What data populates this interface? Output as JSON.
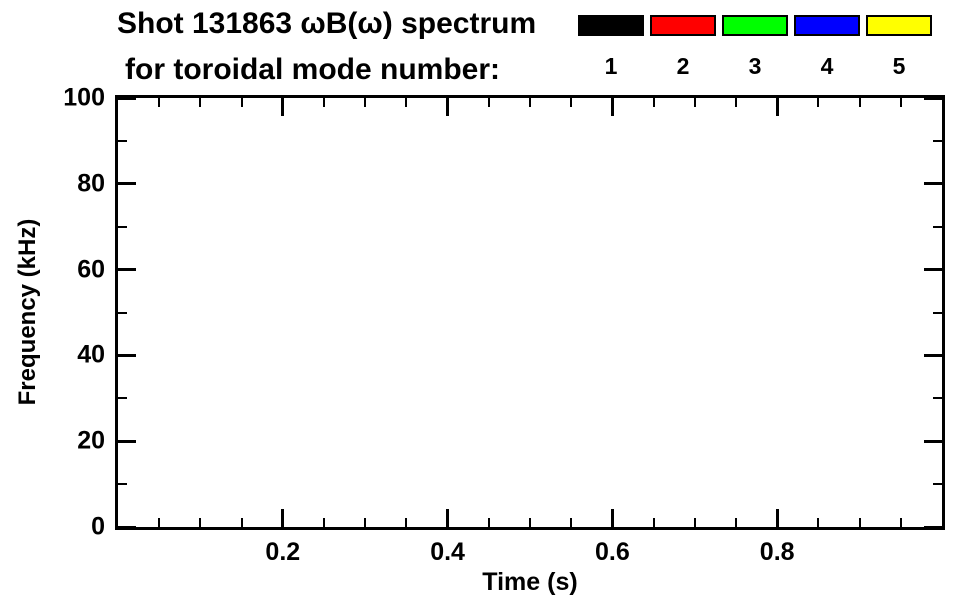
{
  "chart_data": {
    "type": "heatmap",
    "title": "Shot 131863 ωB(ω) spectrum",
    "subtitle": "for toroidal mode number:",
    "xlabel": "Time (s)",
    "ylabel": "Frequency (kHz)",
    "xlim": [
      0.0,
      1.0
    ],
    "ylim": [
      0,
      100
    ],
    "x_major_ticks": [
      0.2,
      0.4,
      0.6,
      0.8
    ],
    "x_tick_labels": [
      "0.2",
      "0.4",
      "0.6",
      "0.8"
    ],
    "x_minor_step": 0.05,
    "y_major_ticks": [
      0,
      20,
      40,
      60,
      80,
      100
    ],
    "y_tick_labels": [
      "0",
      "20",
      "40",
      "60",
      "80",
      "100"
    ],
    "y_minor_step": 10,
    "grid": false,
    "legend_position": "top-right",
    "legend": [
      {
        "label": "1",
        "color": "#000000"
      },
      {
        "label": "2",
        "color": "#ff0000"
      },
      {
        "label": "3",
        "color": "#00ff00"
      },
      {
        "label": "4",
        "color": "#0000ff"
      },
      {
        "label": "5",
        "color": "#ffff00"
      }
    ],
    "series": []
  },
  "style": {
    "axis_color": "#000000",
    "background": "#ffffff"
  }
}
